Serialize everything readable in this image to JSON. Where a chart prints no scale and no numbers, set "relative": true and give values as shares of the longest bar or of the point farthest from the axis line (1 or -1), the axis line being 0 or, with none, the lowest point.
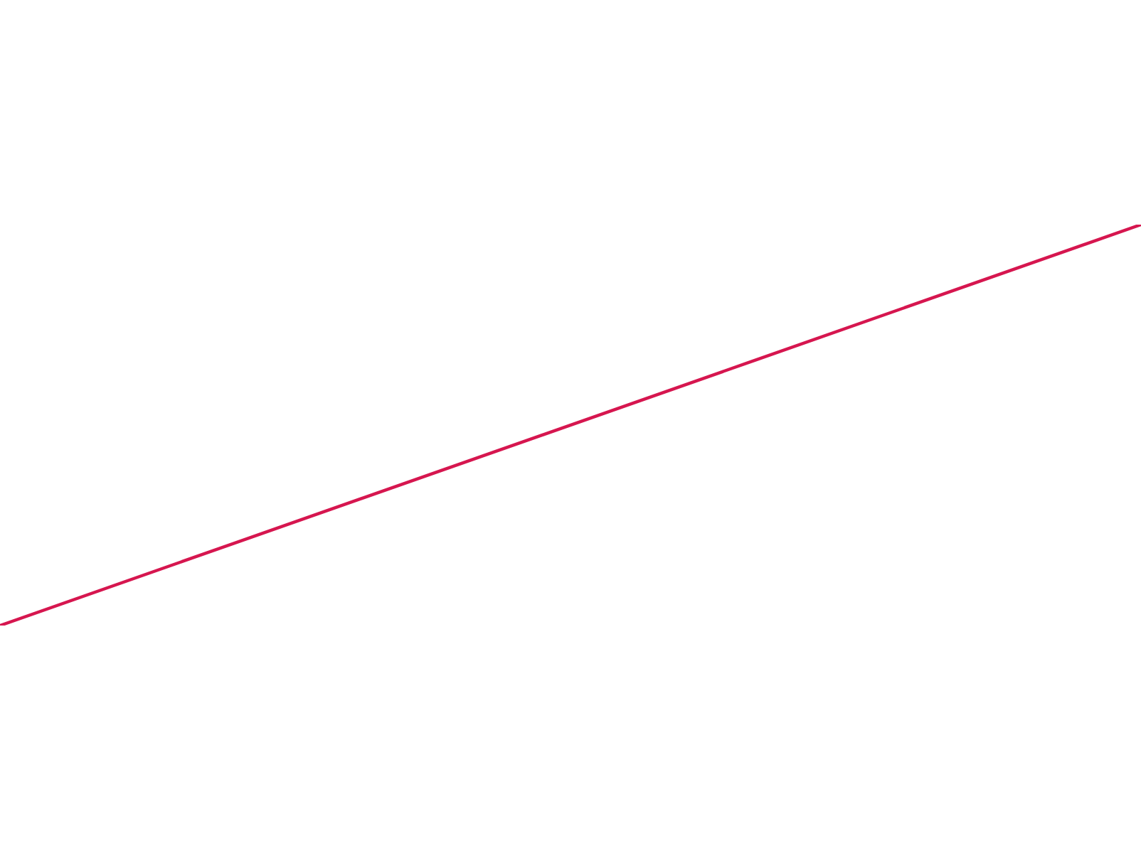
{
  "chart_data": {
    "type": "line",
    "relative": true,
    "categories": [
      null,
      null
    ],
    "series": [
      {
        "color": "#d6164f",
        "values": [
          0,
          1
        ]
      }
    ]
  }
}
